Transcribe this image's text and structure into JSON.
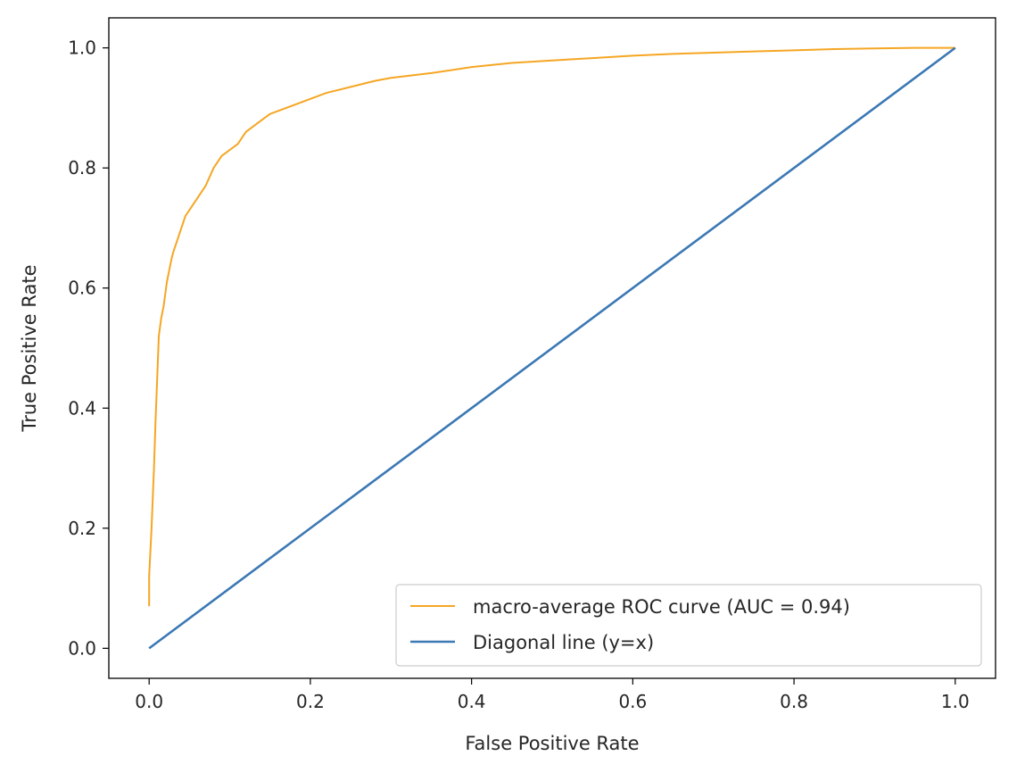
{
  "chart_data": {
    "type": "line",
    "title": "",
    "xlabel": "False Positive Rate",
    "ylabel": "True Positive Rate",
    "xlim": [
      -0.05,
      1.05
    ],
    "ylim": [
      -0.05,
      1.05
    ],
    "x_ticks": [
      "0.0",
      "0.2",
      "0.4",
      "0.6",
      "0.8",
      "1.0"
    ],
    "y_ticks": [
      "0.0",
      "0.2",
      "0.4",
      "0.6",
      "0.8",
      "1.0"
    ],
    "grid": false,
    "legend_position": "lower right",
    "series": [
      {
        "name": "macro-average ROC curve (AUC = 0.94)",
        "color": "#f5a623",
        "x": [
          0.0,
          0.0,
          0.003,
          0.006,
          0.008,
          0.01,
          0.012,
          0.015,
          0.018,
          0.02,
          0.022,
          0.025,
          0.028,
          0.03,
          0.035,
          0.04,
          0.045,
          0.05,
          0.055,
          0.06,
          0.07,
          0.08,
          0.09,
          0.1,
          0.11,
          0.12,
          0.13,
          0.14,
          0.15,
          0.16,
          0.18,
          0.2,
          0.22,
          0.25,
          0.28,
          0.3,
          0.35,
          0.4,
          0.45,
          0.5,
          0.55,
          0.6,
          0.65,
          0.7,
          0.75,
          0.8,
          0.85,
          0.9,
          0.95,
          1.0
        ],
        "y": [
          0.07,
          0.12,
          0.2,
          0.3,
          0.38,
          0.45,
          0.52,
          0.55,
          0.57,
          0.59,
          0.61,
          0.63,
          0.65,
          0.66,
          0.68,
          0.7,
          0.72,
          0.73,
          0.74,
          0.75,
          0.77,
          0.8,
          0.82,
          0.83,
          0.84,
          0.86,
          0.87,
          0.88,
          0.89,
          0.895,
          0.905,
          0.915,
          0.925,
          0.935,
          0.945,
          0.95,
          0.958,
          0.968,
          0.975,
          0.979,
          0.983,
          0.987,
          0.99,
          0.992,
          0.994,
          0.996,
          0.998,
          0.999,
          1.0,
          1.0
        ]
      },
      {
        "name": "Diagonal line (y=x)",
        "color": "#3b78b4",
        "x": [
          0.0,
          1.0
        ],
        "y": [
          0.0,
          1.0
        ]
      }
    ]
  }
}
